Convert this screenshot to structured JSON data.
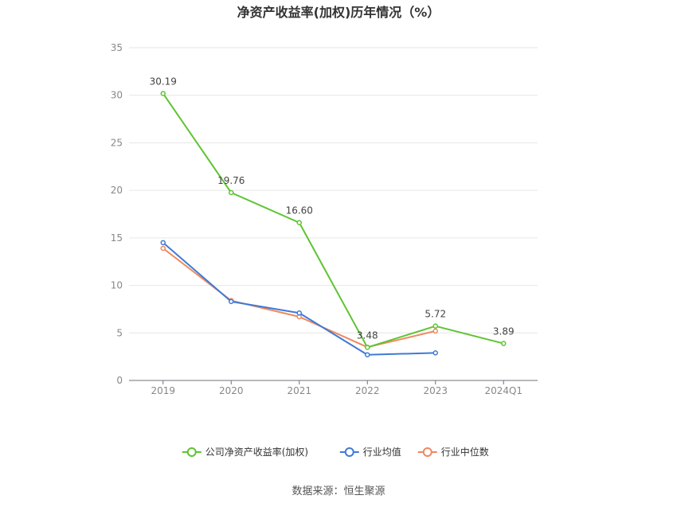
{
  "chart_data": {
    "type": "line",
    "title": "净资产收益率(加权)历年情况（%）",
    "categories": [
      "2019",
      "2020",
      "2021",
      "2022",
      "2023",
      "2024Q1"
    ],
    "ylim": [
      0,
      35
    ],
    "yticks": [
      0,
      5,
      10,
      15,
      20,
      25,
      30,
      35
    ],
    "grid": true,
    "legend_position": "bottom",
    "series": [
      {
        "name": "公司净资产收益率(加权)",
        "color": "#5ec432",
        "values": [
          30.19,
          19.76,
          16.6,
          3.48,
          5.72,
          3.89
        ],
        "labels": [
          "30.19",
          "19.76",
          "16.60",
          "3.48",
          "5.72",
          "3.89"
        ]
      },
      {
        "name": "行业均值",
        "color": "#3f7ad6",
        "values": [
          14.5,
          8.3,
          7.1,
          2.7,
          2.9,
          null
        ]
      },
      {
        "name": "行业中位数",
        "color": "#f0885f",
        "values": [
          13.9,
          8.4,
          6.7,
          3.5,
          5.2,
          null
        ]
      }
    ]
  },
  "source_text": "数据来源：恒生聚源"
}
